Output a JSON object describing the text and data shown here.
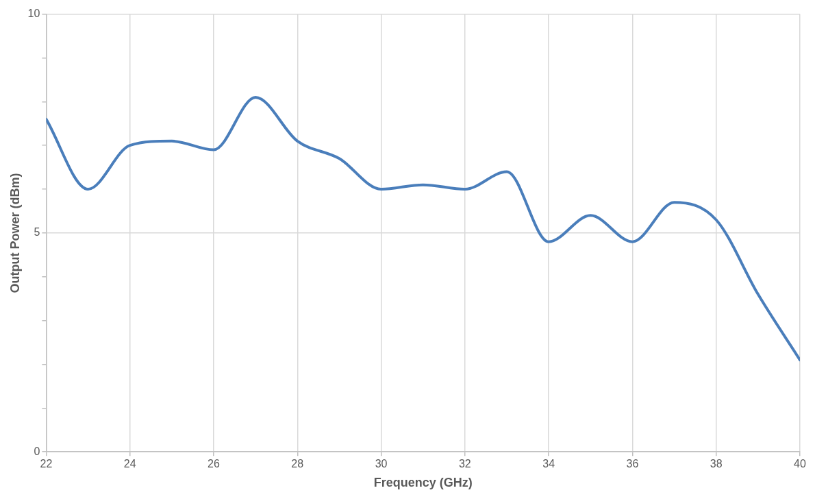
{
  "chart_data": {
    "type": "line",
    "xlabel": "Frequency (GHz)",
    "ylabel": "Output Power (dBm)",
    "x": [
      22,
      23,
      24,
      25,
      26,
      27,
      28,
      29,
      30,
      31,
      32,
      33,
      34,
      35,
      36,
      37,
      38,
      39,
      40
    ],
    "series": [
      {
        "color": "#4a7ebb",
        "values": [
          7.6,
          6.0,
          7.0,
          7.1,
          6.9,
          8.1,
          7.1,
          6.7,
          6.0,
          6.1,
          6.0,
          6.4,
          4.8,
          5.4,
          4.8,
          5.7,
          5.3,
          3.6,
          2.1
        ]
      }
    ],
    "xlim": [
      22,
      40
    ],
    "xticks": [
      22,
      24,
      26,
      28,
      30,
      32,
      34,
      36,
      38,
      40
    ],
    "ylim": [
      0,
      10
    ],
    "yticks": [
      0,
      {
        "value": 1,
        "label": null
      },
      {
        "value": 2,
        "label": null
      },
      {
        "value": 3,
        "label": null
      },
      {
        "value": 4,
        "label": null
      },
      5,
      {
        "value": 6,
        "label": null
      },
      {
        "value": 7,
        "label": null
      },
      {
        "value": 8,
        "label": null
      },
      {
        "value": 9,
        "label": null
      },
      10
    ],
    "grid": true,
    "legend": false,
    "marker": "none",
    "line_style": "solid"
  }
}
